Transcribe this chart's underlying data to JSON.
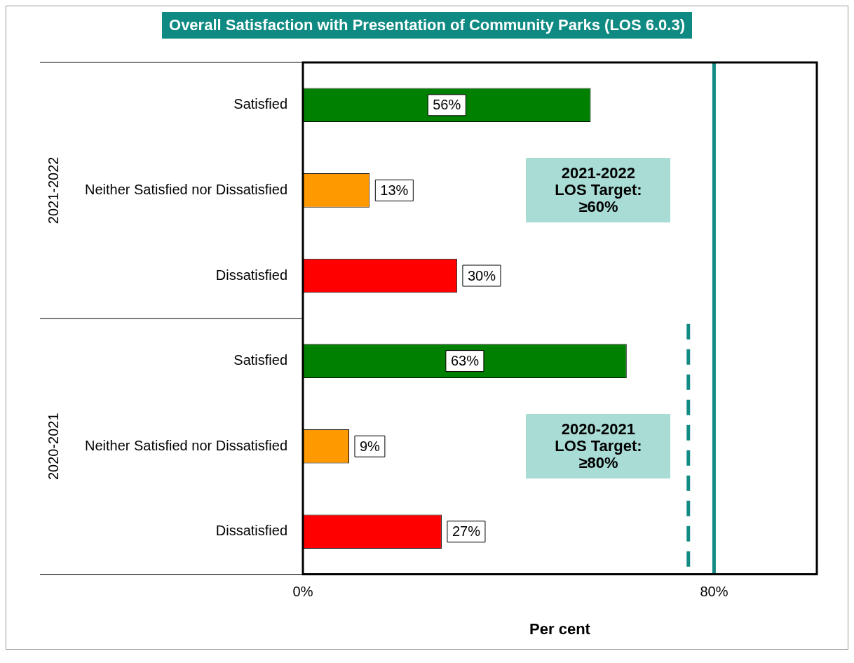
{
  "chart_data": {
    "type": "bar",
    "orientation": "horizontal",
    "title": "Overall Satisfaction with Presentation of Community Parks (LOS 6.0.3)",
    "xlabel": "Per cent",
    "categories": [
      "Satisfied",
      "Neither Satisfied nor Dissatisfied",
      "Dissatisfied",
      "Satisfied",
      "Neither Satisfied nor Dissatisfied",
      "Dissatisfied"
    ],
    "values": [
      56,
      13,
      30,
      63,
      9,
      27
    ],
    "colors": [
      "#008000",
      "#ff9900",
      "#ff0000",
      "#008000",
      "#ff9900",
      "#ff0000"
    ],
    "value_labels": [
      "56%",
      "13%",
      "30%",
      "63%",
      "9%",
      "27%"
    ],
    "xlim": [
      0,
      100
    ],
    "xticks": [
      {
        "value": 0,
        "label": "0%"
      },
      {
        "value": 80,
        "label": "80%"
      }
    ],
    "grid": false,
    "legend": false,
    "ref_lines": [
      {
        "axis": "x",
        "value": 80,
        "color": "#138a83",
        "line_style": "solid"
      },
      {
        "axis": "x",
        "value": 75,
        "color": "#138a83",
        "line_style": "dashed"
      }
    ],
    "annotations": [
      "2021-2022",
      "2020-2021",
      "2021-2022\nLOS Target:\n≥60%",
      "2020-2021\nLOS Target:\n≥80%"
    ]
  }
}
